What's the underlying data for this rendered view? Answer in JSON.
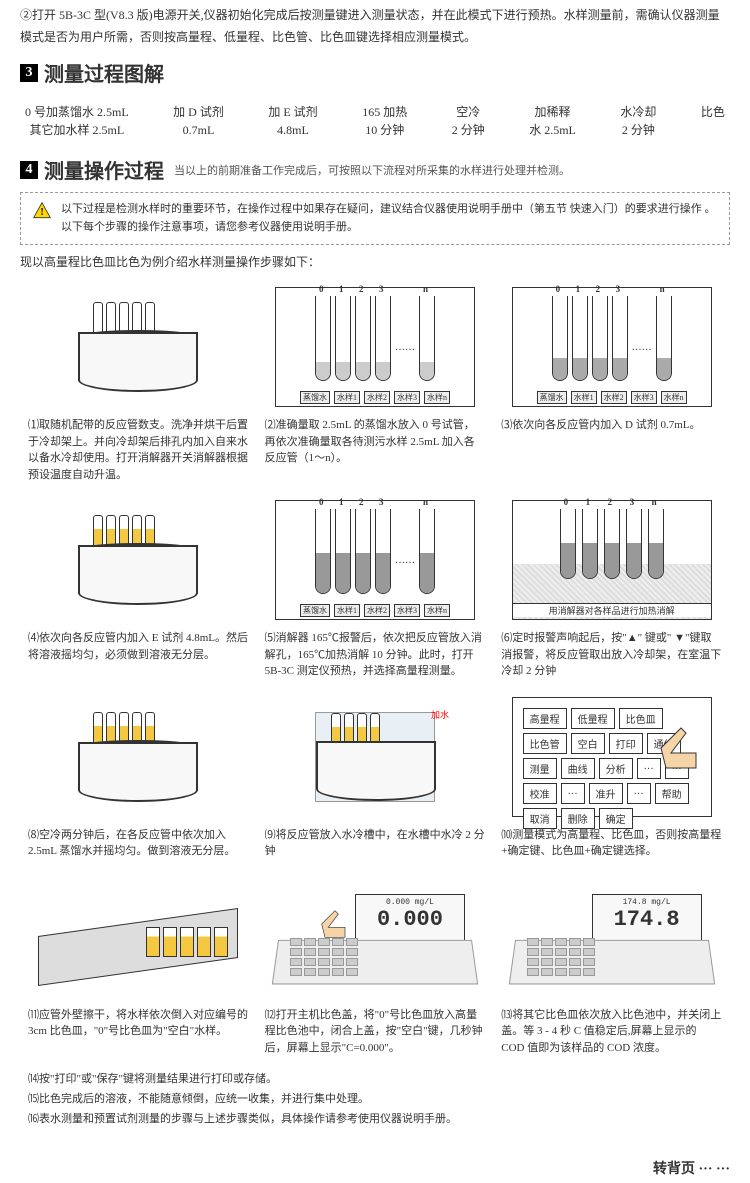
{
  "intro": {
    "text": "②打开 5B-3C 型(V8.3 版)电源开关,仪器初始化完成后按测量键进入测量状态，并在此模式下进行预热。水样测量前，需确认仪器测量模式是否为用户所需，否则按高量程、低量程、比色管、比色皿键选择相应测量模式。"
  },
  "section3": {
    "num": "3",
    "title": "测量过程图解"
  },
  "flow": [
    {
      "l1": "0 号加蒸馏水 2.5mL",
      "l2": "其它加水样 2.5mL"
    },
    {
      "l1": "加 D 试剂",
      "l2": "0.7mL"
    },
    {
      "l1": "加 E 试剂",
      "l2": "4.8mL"
    },
    {
      "l1": "165   加热",
      "l2": "10 分钟"
    },
    {
      "l1": "空冷",
      "l2": "2 分钟"
    },
    {
      "l1": "加稀释",
      "l2": "水 2.5mL"
    },
    {
      "l1": "水冷却",
      "l2": "2 分钟"
    },
    {
      "l1": "比色",
      "l2": ""
    }
  ],
  "section4": {
    "num": "4",
    "title": "测量操作过程",
    "sub": "当以上的前期准备工作完成后，可按照以下流程对所采集的水样进行处理并检测。"
  },
  "note": {
    "l1": "以下过程是检测水样时的重要环节，在操作过程中如果存在疑问，建议结合仪器使用说明手册中（第五节 快速入门）的要求进行操作 。",
    "l2": "以下每个步骤的操作注意事项，请您参考仪器使用说明手册。"
  },
  "intro_line": "现以高量程比色皿比色为例介绍水样测量操作步骤如下：",
  "steps": {
    "s1": "⑴取随机配带的反应管数支。洗净并烘干后置于冷却架上。并向冷却架后排孔内加入自来水以备水冷却使用。打开消解器开关消解器根据预设温度自动升温。",
    "s2": "⑵准确量取 2.5mL 的蒸馏水放入 0 号试管，再依次准确量取各待测污水样 2.5mL 加入各反应管（1～n）。",
    "s3": "⑶依次向各反应管内加入 D 试剂 0.7mL。",
    "s4": "⑷依次向各反应管内加入 E 试剂 4.8mL。然后将溶液摇均匀，必须做到溶液无分层。",
    "s5": "⑸消解器 165℃报警后，依次把反应管放入消解孔，165℃加热消解 10 分钟。此时，打开5B-3C 测定仪预热，并选择高量程测量。",
    "s6": "⑹定时报警声响起后，按\"▲\" 键或\" ▼\"键取消报警，将反应管取出放入冷却架，在室温下冷却 2 分钟",
    "s7": "⑻空冷两分钟后，在各反应管中依次加入 2.5mL 蒸馏水并摇均匀。做到溶液无分层。",
    "s8": "⑼将反应管放入水冷槽中，在水槽中水冷 2 分钟",
    "s9": "⑽测量模式为高量程、比色皿，否则按高量程+确定键、比色皿+确定键选择。",
    "s10": "⑾应管外壁擦干，将水样依次倒入对应编号的 3cm 比色皿，\"0\"号比色皿为\"空白\"水样。",
    "s11": "⑿打开主机比色盖，将\"0\"号比色皿放入高量程比色池中，闭合上盖，按\"空白\"键，几秒钟后，屏幕上显示\"C=0.000\"。",
    "s12": "⒀将其它比色皿依次放入比色池中，并关闭上盖。等 3 - 4 秒 C 值稳定后,屏幕上显示的 COD 值即为该样品的 COD 浓度。"
  },
  "extras": {
    "e1": "⒁按\"打印\"或\"保存\"键将测量结果进行打印或存储。",
    "e2": "⒂比色完成后的溶液，不能随意倾倒，应统一收集，并进行集中处理。",
    "e3": "⒃表水测量和预置试剂测量的步骤与上述步骤类似，具体操作请参考使用仪器说明手册。"
  },
  "panel_btns": [
    "高量程",
    "低量程",
    "比色皿",
    "比色管",
    "空白",
    "打印",
    "通信",
    "测量",
    "曲线",
    "分析",
    "…",
    "…",
    "校准",
    "…",
    "准升",
    "…",
    "帮助",
    "取消",
    "删除",
    "确定"
  ],
  "tube_labels": [
    "0",
    "1",
    "2",
    "3",
    "n"
  ],
  "btm_labels": [
    "蒸馏水",
    "水样1",
    "水样2",
    "水样3",
    "水样n"
  ],
  "cool_label": "用消解器对各样品进行加热消解",
  "display1": "0.000",
  "display1_unit": "0.000 mg/L",
  "display2": "174.8",
  "display2_unit": "174.8 mg/L",
  "footer": "转背页 ··· ···"
}
